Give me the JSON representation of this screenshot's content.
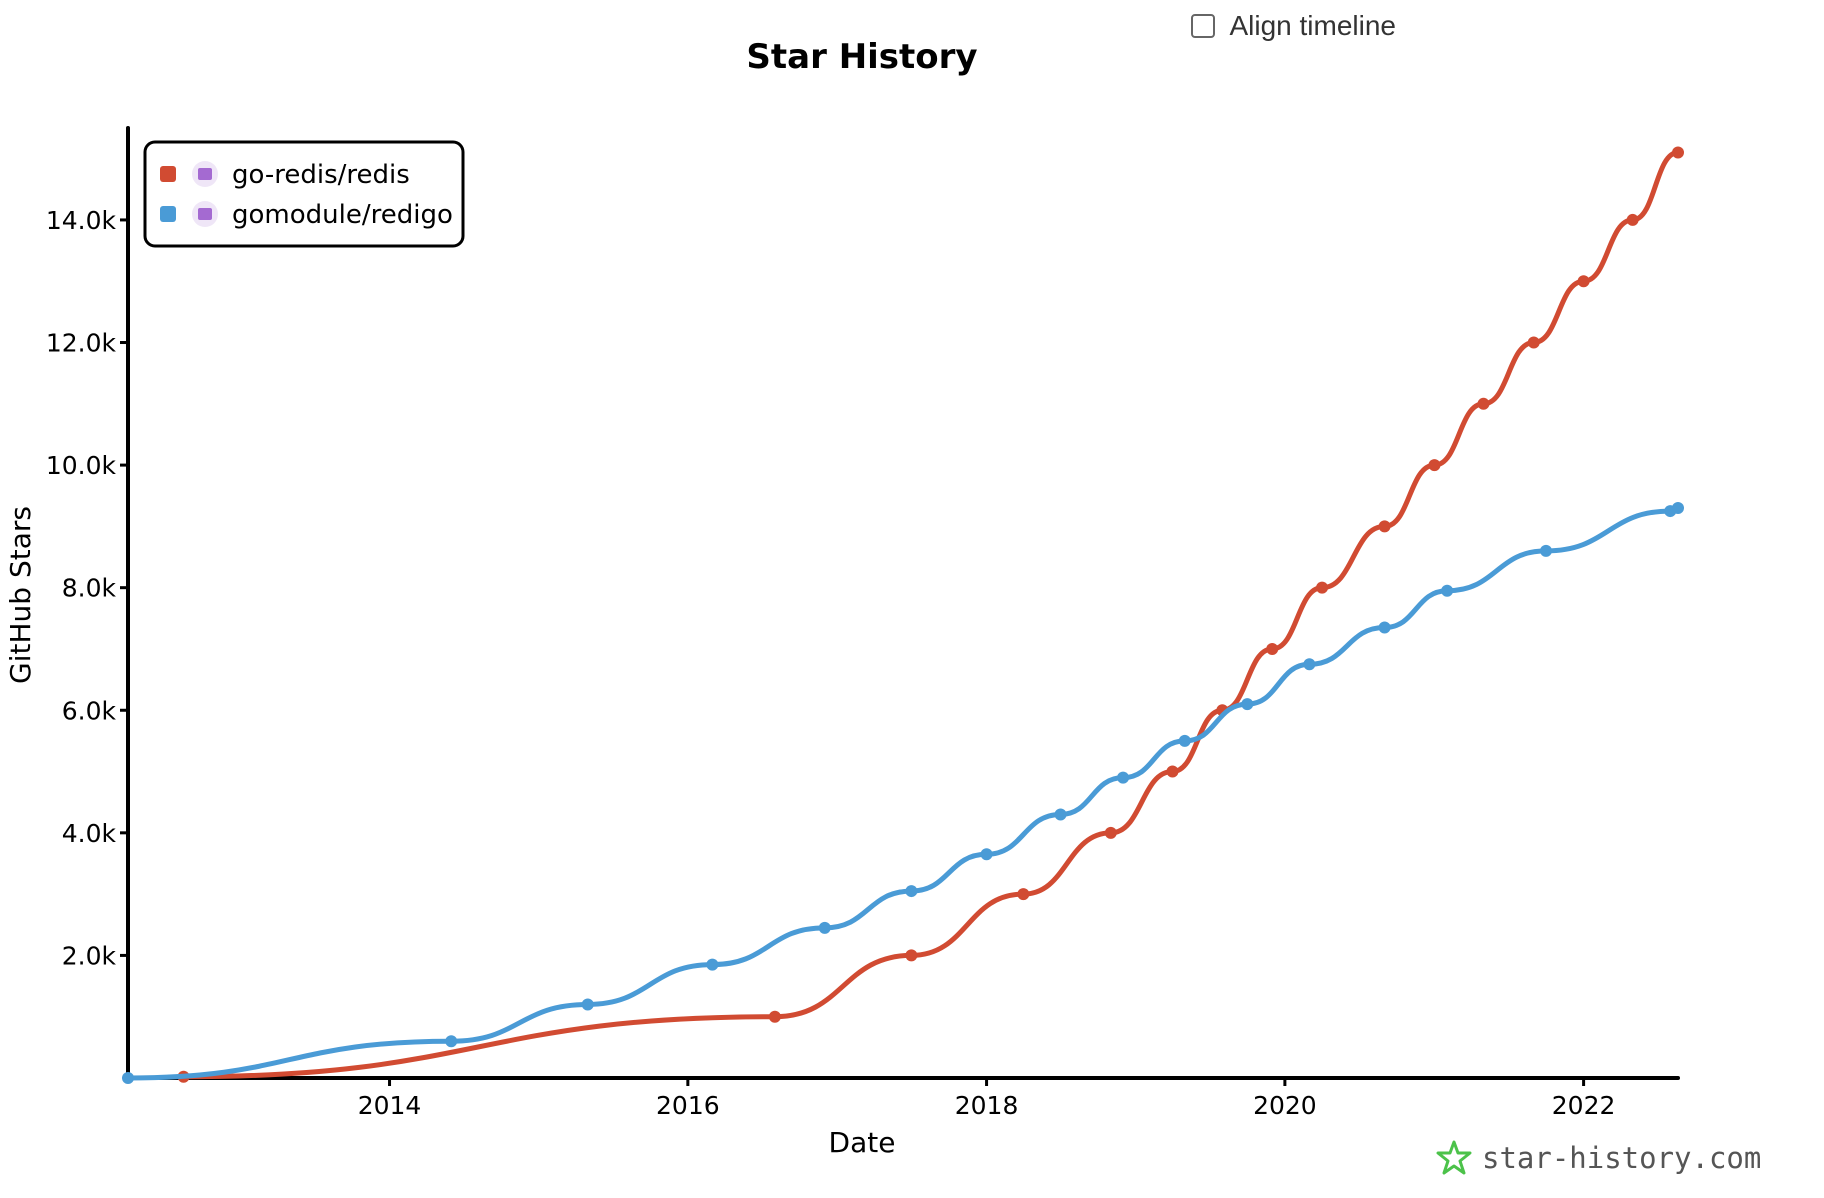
{
  "controls": {
    "align_timeline_label": "Align timeline",
    "align_timeline_checked": false
  },
  "watermark": {
    "text": "star-history.com",
    "icon": "star-icon",
    "icon_color": "#4cc24a"
  },
  "chart_data": {
    "type": "line",
    "title": "Star History",
    "xlabel": "Date",
    "ylabel": "GitHub Stars",
    "xlim": [
      "2012-04-01",
      "2022-08-20"
    ],
    "ylim": [
      0,
      15500
    ],
    "x_ticks": [
      {
        "date": "2014-01-01",
        "label": "2014"
      },
      {
        "date": "2016-01-01",
        "label": "2016"
      },
      {
        "date": "2018-01-01",
        "label": "2018"
      },
      {
        "date": "2020-01-01",
        "label": "2020"
      },
      {
        "date": "2022-01-01",
        "label": "2022"
      }
    ],
    "y_ticks": [
      {
        "value": 2000,
        "label": "2.0k"
      },
      {
        "value": 4000,
        "label": "4.0k"
      },
      {
        "value": 6000,
        "label": "6.0k"
      },
      {
        "value": 8000,
        "label": "8.0k"
      },
      {
        "value": 10000,
        "label": "10.0k"
      },
      {
        "value": 12000,
        "label": "12.0k"
      },
      {
        "value": 14000,
        "label": "14.0k"
      }
    ],
    "legend_position": "top-left",
    "series": [
      {
        "name": "go-redis/redis",
        "color": "#d14b32",
        "icon": "avatar-icon",
        "points": [
          [
            "2012-08-15",
            20
          ],
          [
            "2016-08-01",
            1000
          ],
          [
            "2017-07-01",
            2000
          ],
          [
            "2018-04-01",
            3000
          ],
          [
            "2018-11-01",
            4000
          ],
          [
            "2019-04-01",
            5000
          ],
          [
            "2019-08-01",
            6000
          ],
          [
            "2019-12-01",
            7000
          ],
          [
            "2020-04-01",
            8000
          ],
          [
            "2020-09-01",
            9000
          ],
          [
            "2021-01-01",
            10000
          ],
          [
            "2021-05-01",
            11000
          ],
          [
            "2021-09-01",
            12000
          ],
          [
            "2022-01-01",
            13000
          ],
          [
            "2022-05-01",
            14000
          ],
          [
            "2022-08-20",
            15100
          ]
        ]
      },
      {
        "name": "gomodule/redigo",
        "color": "#4a9bd6",
        "icon": "avatar-icon",
        "points": [
          [
            "2012-04-01",
            0
          ],
          [
            "2014-06-01",
            600
          ],
          [
            "2015-05-01",
            1200
          ],
          [
            "2016-03-01",
            1850
          ],
          [
            "2016-12-01",
            2450
          ],
          [
            "2017-07-01",
            3050
          ],
          [
            "2018-01-01",
            3650
          ],
          [
            "2018-07-01",
            4300
          ],
          [
            "2018-12-01",
            4900
          ],
          [
            "2019-05-01",
            5500
          ],
          [
            "2019-10-01",
            6100
          ],
          [
            "2020-03-01",
            6750
          ],
          [
            "2020-09-01",
            7350
          ],
          [
            "2021-02-01",
            7950
          ],
          [
            "2021-10-01",
            8600
          ],
          [
            "2022-08-01",
            9250
          ],
          [
            "2022-08-20",
            9300
          ]
        ]
      }
    ]
  }
}
